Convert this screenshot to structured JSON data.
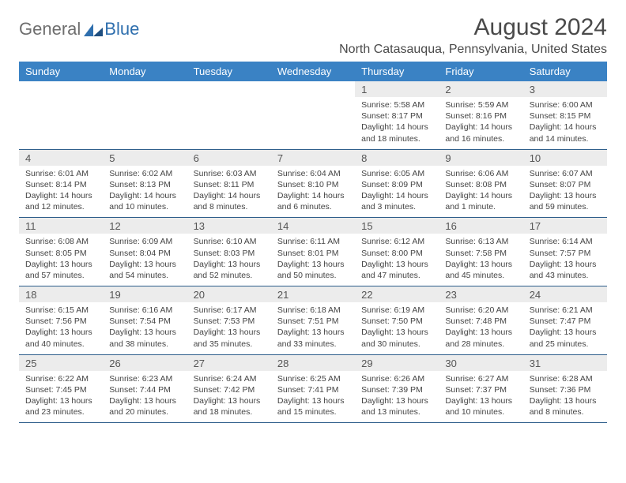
{
  "logo": {
    "general": "General",
    "blue": "Blue"
  },
  "title": "August 2024",
  "location": "North Catasauqua, Pennsylvania, United States",
  "colors": {
    "header_bg": "#3a82c4",
    "header_text": "#ffffff",
    "daynum_bg": "#ececec",
    "rule": "#2d5d8a",
    "logo_general": "#6e6e6e",
    "logo_blue": "#2f6fae"
  },
  "typography": {
    "title_fontsize": 30,
    "location_fontsize": 16,
    "dayheader_fontsize": 13,
    "daynum_fontsize": 13,
    "cell_fontsize": 10.5
  },
  "day_headers": [
    "Sunday",
    "Monday",
    "Tuesday",
    "Wednesday",
    "Thursday",
    "Friday",
    "Saturday"
  ],
  "weeks": [
    [
      {
        "n": "",
        "sunrise": "",
        "sunset": "",
        "daylight": ""
      },
      {
        "n": "",
        "sunrise": "",
        "sunset": "",
        "daylight": ""
      },
      {
        "n": "",
        "sunrise": "",
        "sunset": "",
        "daylight": ""
      },
      {
        "n": "",
        "sunrise": "",
        "sunset": "",
        "daylight": ""
      },
      {
        "n": "1",
        "sunrise": "Sunrise: 5:58 AM",
        "sunset": "Sunset: 8:17 PM",
        "daylight": "Daylight: 14 hours and 18 minutes."
      },
      {
        "n": "2",
        "sunrise": "Sunrise: 5:59 AM",
        "sunset": "Sunset: 8:16 PM",
        "daylight": "Daylight: 14 hours and 16 minutes."
      },
      {
        "n": "3",
        "sunrise": "Sunrise: 6:00 AM",
        "sunset": "Sunset: 8:15 PM",
        "daylight": "Daylight: 14 hours and 14 minutes."
      }
    ],
    [
      {
        "n": "4",
        "sunrise": "Sunrise: 6:01 AM",
        "sunset": "Sunset: 8:14 PM",
        "daylight": "Daylight: 14 hours and 12 minutes."
      },
      {
        "n": "5",
        "sunrise": "Sunrise: 6:02 AM",
        "sunset": "Sunset: 8:13 PM",
        "daylight": "Daylight: 14 hours and 10 minutes."
      },
      {
        "n": "6",
        "sunrise": "Sunrise: 6:03 AM",
        "sunset": "Sunset: 8:11 PM",
        "daylight": "Daylight: 14 hours and 8 minutes."
      },
      {
        "n": "7",
        "sunrise": "Sunrise: 6:04 AM",
        "sunset": "Sunset: 8:10 PM",
        "daylight": "Daylight: 14 hours and 6 minutes."
      },
      {
        "n": "8",
        "sunrise": "Sunrise: 6:05 AM",
        "sunset": "Sunset: 8:09 PM",
        "daylight": "Daylight: 14 hours and 3 minutes."
      },
      {
        "n": "9",
        "sunrise": "Sunrise: 6:06 AM",
        "sunset": "Sunset: 8:08 PM",
        "daylight": "Daylight: 14 hours and 1 minute."
      },
      {
        "n": "10",
        "sunrise": "Sunrise: 6:07 AM",
        "sunset": "Sunset: 8:07 PM",
        "daylight": "Daylight: 13 hours and 59 minutes."
      }
    ],
    [
      {
        "n": "11",
        "sunrise": "Sunrise: 6:08 AM",
        "sunset": "Sunset: 8:05 PM",
        "daylight": "Daylight: 13 hours and 57 minutes."
      },
      {
        "n": "12",
        "sunrise": "Sunrise: 6:09 AM",
        "sunset": "Sunset: 8:04 PM",
        "daylight": "Daylight: 13 hours and 54 minutes."
      },
      {
        "n": "13",
        "sunrise": "Sunrise: 6:10 AM",
        "sunset": "Sunset: 8:03 PM",
        "daylight": "Daylight: 13 hours and 52 minutes."
      },
      {
        "n": "14",
        "sunrise": "Sunrise: 6:11 AM",
        "sunset": "Sunset: 8:01 PM",
        "daylight": "Daylight: 13 hours and 50 minutes."
      },
      {
        "n": "15",
        "sunrise": "Sunrise: 6:12 AM",
        "sunset": "Sunset: 8:00 PM",
        "daylight": "Daylight: 13 hours and 47 minutes."
      },
      {
        "n": "16",
        "sunrise": "Sunrise: 6:13 AM",
        "sunset": "Sunset: 7:58 PM",
        "daylight": "Daylight: 13 hours and 45 minutes."
      },
      {
        "n": "17",
        "sunrise": "Sunrise: 6:14 AM",
        "sunset": "Sunset: 7:57 PM",
        "daylight": "Daylight: 13 hours and 43 minutes."
      }
    ],
    [
      {
        "n": "18",
        "sunrise": "Sunrise: 6:15 AM",
        "sunset": "Sunset: 7:56 PM",
        "daylight": "Daylight: 13 hours and 40 minutes."
      },
      {
        "n": "19",
        "sunrise": "Sunrise: 6:16 AM",
        "sunset": "Sunset: 7:54 PM",
        "daylight": "Daylight: 13 hours and 38 minutes."
      },
      {
        "n": "20",
        "sunrise": "Sunrise: 6:17 AM",
        "sunset": "Sunset: 7:53 PM",
        "daylight": "Daylight: 13 hours and 35 minutes."
      },
      {
        "n": "21",
        "sunrise": "Sunrise: 6:18 AM",
        "sunset": "Sunset: 7:51 PM",
        "daylight": "Daylight: 13 hours and 33 minutes."
      },
      {
        "n": "22",
        "sunrise": "Sunrise: 6:19 AM",
        "sunset": "Sunset: 7:50 PM",
        "daylight": "Daylight: 13 hours and 30 minutes."
      },
      {
        "n": "23",
        "sunrise": "Sunrise: 6:20 AM",
        "sunset": "Sunset: 7:48 PM",
        "daylight": "Daylight: 13 hours and 28 minutes."
      },
      {
        "n": "24",
        "sunrise": "Sunrise: 6:21 AM",
        "sunset": "Sunset: 7:47 PM",
        "daylight": "Daylight: 13 hours and 25 minutes."
      }
    ],
    [
      {
        "n": "25",
        "sunrise": "Sunrise: 6:22 AM",
        "sunset": "Sunset: 7:45 PM",
        "daylight": "Daylight: 13 hours and 23 minutes."
      },
      {
        "n": "26",
        "sunrise": "Sunrise: 6:23 AM",
        "sunset": "Sunset: 7:44 PM",
        "daylight": "Daylight: 13 hours and 20 minutes."
      },
      {
        "n": "27",
        "sunrise": "Sunrise: 6:24 AM",
        "sunset": "Sunset: 7:42 PM",
        "daylight": "Daylight: 13 hours and 18 minutes."
      },
      {
        "n": "28",
        "sunrise": "Sunrise: 6:25 AM",
        "sunset": "Sunset: 7:41 PM",
        "daylight": "Daylight: 13 hours and 15 minutes."
      },
      {
        "n": "29",
        "sunrise": "Sunrise: 6:26 AM",
        "sunset": "Sunset: 7:39 PM",
        "daylight": "Daylight: 13 hours and 13 minutes."
      },
      {
        "n": "30",
        "sunrise": "Sunrise: 6:27 AM",
        "sunset": "Sunset: 7:37 PM",
        "daylight": "Daylight: 13 hours and 10 minutes."
      },
      {
        "n": "31",
        "sunrise": "Sunrise: 6:28 AM",
        "sunset": "Sunset: 7:36 PM",
        "daylight": "Daylight: 13 hours and 8 minutes."
      }
    ]
  ]
}
